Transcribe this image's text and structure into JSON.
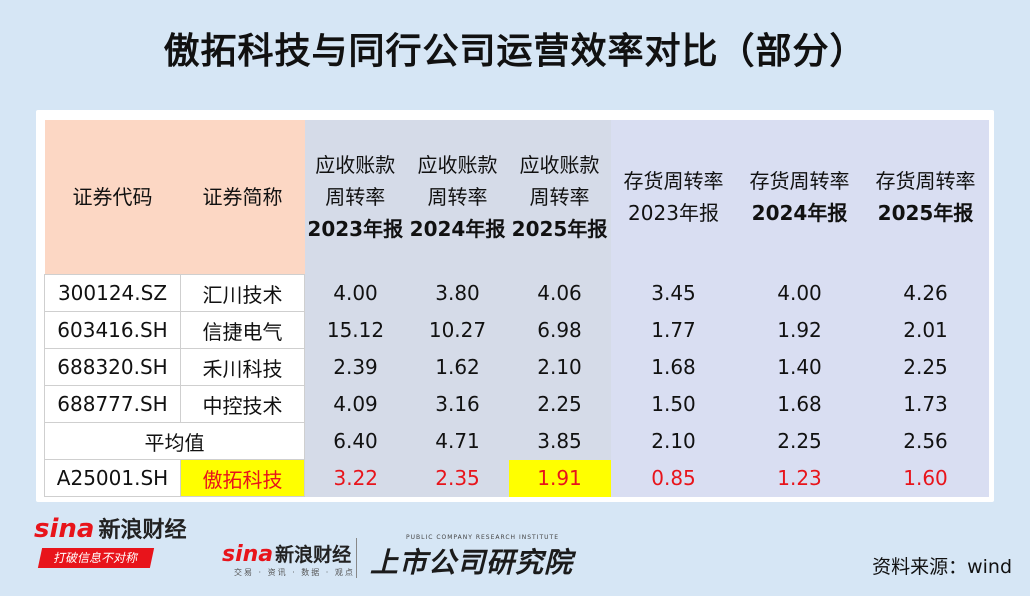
{
  "title": "傲拓科技与同行公司运营效率对比（部分）",
  "headers": {
    "code": "证券代码",
    "name": "证券简称",
    "ar": [
      {
        "l1": "应收账款",
        "l2": "周转率",
        "l3": "2023年报"
      },
      {
        "l1": "应收账款",
        "l2": "周转率",
        "l3": "2024年报"
      },
      {
        "l1": "应收账款",
        "l2": "周转率",
        "l3": "2025年报"
      }
    ],
    "inv": [
      {
        "l1": "存货周转率",
        "l2": "2023年报"
      },
      {
        "l1": "存货周转率",
        "l2": "2024年报"
      },
      {
        "l1": "存货周转率",
        "l2": "2025年报"
      }
    ]
  },
  "rows": [
    {
      "code": "300124.SZ",
      "name": "汇川技术",
      "ar": [
        "4.00",
        "3.80",
        "4.06"
      ],
      "inv": [
        "3.45",
        "4.00",
        "4.26"
      ]
    },
    {
      "code": "603416.SH",
      "name": "信捷电气",
      "ar": [
        "15.12",
        "10.27",
        "6.98"
      ],
      "inv": [
        "1.77",
        "1.92",
        "2.01"
      ]
    },
    {
      "code": "688320.SH",
      "name": "禾川科技",
      "ar": [
        "2.39",
        "1.62",
        "2.10"
      ],
      "inv": [
        "1.68",
        "1.40",
        "2.25"
      ]
    },
    {
      "code": "688777.SH",
      "name": "中控技术",
      "ar": [
        "4.09",
        "3.16",
        "2.25"
      ],
      "inv": [
        "1.50",
        "1.68",
        "1.73"
      ]
    }
  ],
  "average": {
    "label": "平均值",
    "ar": [
      "6.40",
      "4.71",
      "3.85"
    ],
    "inv": [
      "2.10",
      "2.25",
      "2.56"
    ]
  },
  "target": {
    "code": "A25001.SH",
    "name": "傲拓科技",
    "ar": [
      "3.22",
      "2.35",
      "1.91"
    ],
    "inv": [
      "0.85",
      "1.23",
      "1.60"
    ]
  },
  "colors": {
    "highlight": "#ffff00",
    "emphasis": "#e8141b",
    "header_peach": "#fcd7c4",
    "ar_group": "#d5dbe8",
    "inv_group": "#d9def2"
  },
  "footer": {
    "sina_word": "sina",
    "sina_name": "新浪财经",
    "sina_slogan": "打破信息不对称",
    "sina2_sub": "交易 · 资讯 · 数据 · 观点",
    "institute_en": "PUBLIC COMPANY RESEARCH INSTITUTE",
    "institute_cn": "上市公司研究院",
    "source": "资料来源：wind"
  }
}
